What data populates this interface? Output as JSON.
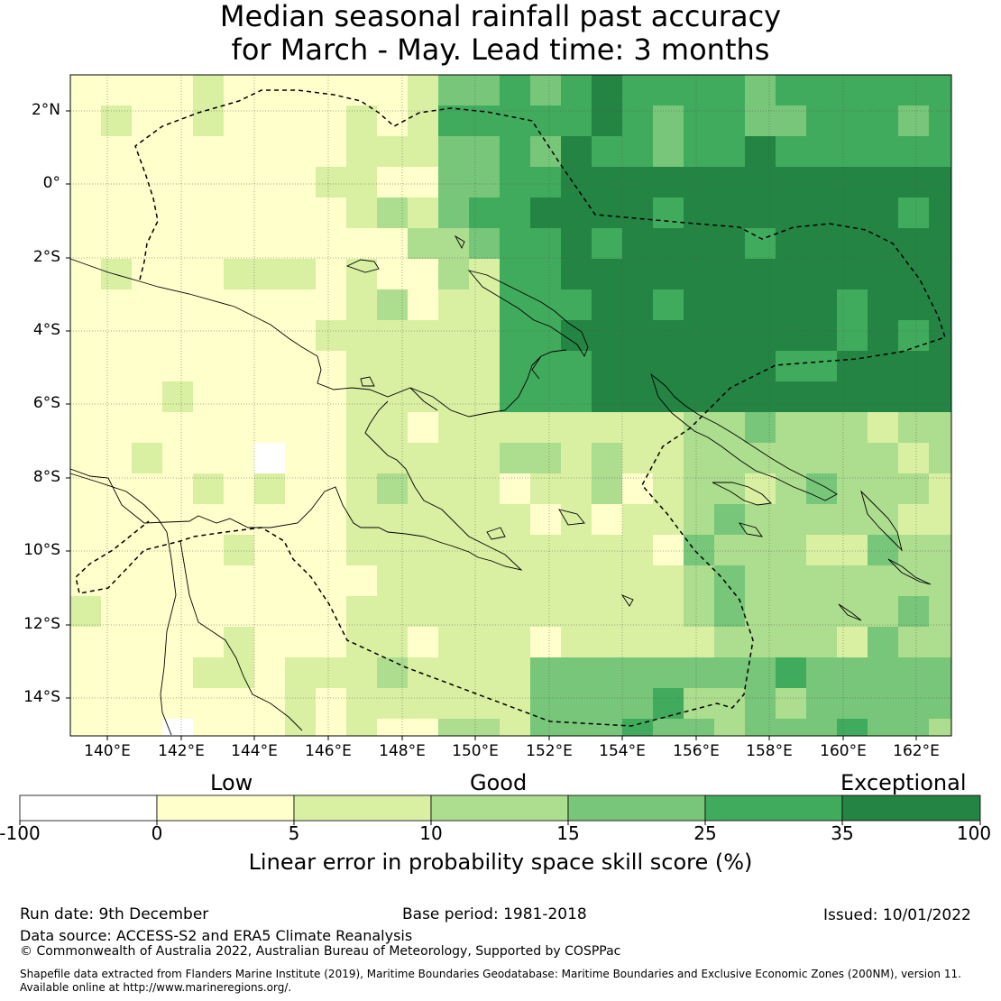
{
  "title": {
    "line1": "Median seasonal rainfall past accuracy",
    "line2": "for March - May. Lead time: 3 months"
  },
  "map": {
    "lat_labels": [
      "2°N",
      "0°",
      "2°S",
      "4°S",
      "6°S",
      "8°S",
      "10°S",
      "12°S",
      "14°S"
    ],
    "lon_labels": [
      "140°E",
      "142°E",
      "144°E",
      "146°E",
      "148°E",
      "150°E",
      "152°E",
      "154°E",
      "156°E",
      "158°E",
      "160°E",
      "162°E"
    ]
  },
  "legend": {
    "categories": [
      "Low",
      "Good",
      "Exceptional"
    ],
    "ticks": [
      "-100",
      "0",
      "5",
      "10",
      "15",
      "25",
      "35",
      "100"
    ],
    "colors": [
      "#ffffff",
      "#ffffcc",
      "#d9f0a3",
      "#addd8e",
      "#78c679",
      "#41ab5d",
      "#238443"
    ],
    "label": "Linear error in probability space skill score (%)"
  },
  "footer": {
    "run_date": "Run date: 9th December",
    "base_period": "Base period: 1981-2018",
    "issued": "Issued: 10/01/2022",
    "data_source": "Data source: ACCESS-S2 and ERA5 Climate Reanalysis",
    "copyright": "© Commonwealth of Australia 2022, Australian Bureau of Meteorology, Supported by COSPPac",
    "shapefile_line1": "Shapefile data extracted from Flanders Marine Institute (2019), Maritime Boundaries Geodatabase: Maritime Boundaries and Exclusive Economic Zones (200NM), version 11.",
    "shapefile_line2": "Available online at http://www.marineregions.org/."
  }
}
